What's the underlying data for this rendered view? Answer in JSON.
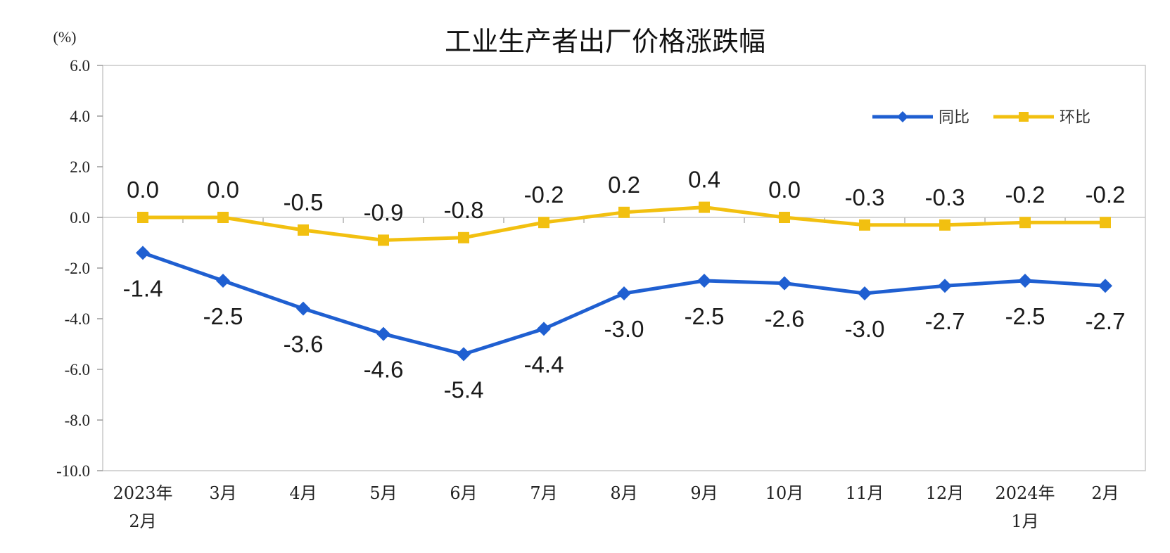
{
  "chart_data": {
    "type": "line",
    "title": "工业生产者出厂价格涨跌幅",
    "unit_label": "(%)",
    "categories": [
      [
        "2023年",
        "2月"
      ],
      [
        "3月"
      ],
      [
        "4月"
      ],
      [
        "5月"
      ],
      [
        "6月"
      ],
      [
        "7月"
      ],
      [
        "8月"
      ],
      [
        "9月"
      ],
      [
        "10月"
      ],
      [
        "11月"
      ],
      [
        "12月"
      ],
      [
        "2024年",
        "1月"
      ],
      [
        "2月"
      ]
    ],
    "yticks": [
      "6.0",
      "4.0",
      "2.0",
      "0.0",
      "-2.0",
      "-4.0",
      "-6.0",
      "-8.0",
      "-10.0"
    ],
    "ylim": [
      -10,
      6
    ],
    "grid": false,
    "zero_line": true,
    "legend_position": "top-right",
    "series": [
      {
        "name": "同比",
        "color": "#1f5fd1",
        "marker": "diamond",
        "label_position": "below",
        "values": [
          -1.4,
          -2.5,
          -3.6,
          -4.6,
          -5.4,
          -4.4,
          -3.0,
          -2.5,
          -2.6,
          -3.0,
          -2.7,
          -2.5,
          -2.7
        ],
        "labels": [
          "-1.4",
          "-2.5",
          "-3.6",
          "-4.6",
          "-5.4",
          "-4.4",
          "-3.0",
          "-2.5",
          "-2.6",
          "-3.0",
          "-2.7",
          "-2.5",
          "-2.7"
        ]
      },
      {
        "name": "环比",
        "color": "#f2c010",
        "marker": "square",
        "label_position": "above",
        "values": [
          0.0,
          0.0,
          -0.5,
          -0.9,
          -0.8,
          -0.2,
          0.2,
          0.4,
          0.0,
          -0.3,
          -0.3,
          -0.2,
          -0.2
        ],
        "labels": [
          "0.0",
          "0.0",
          "-0.5",
          "-0.9",
          "-0.8",
          "-0.2",
          "0.2",
          "0.4",
          "0.0",
          "-0.3",
          "-0.3",
          "-0.2",
          "-0.2"
        ]
      }
    ]
  }
}
